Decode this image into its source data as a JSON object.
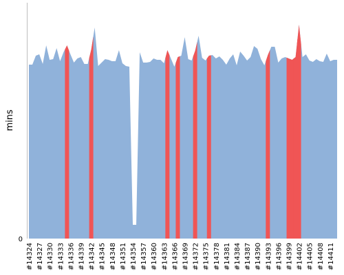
{
  "chart_data": {
    "type": "area",
    "ylabel": "mins",
    "y_ticks": [
      "0"
    ],
    "ylim": [
      0,
      330
    ],
    "colors": {
      "pass": "#90b2da",
      "fail": "#f05555"
    },
    "x_labels": [
      "#14324",
      "#14327",
      "#14330",
      "#14333",
      "#14336",
      "#14339",
      "#14342",
      "#14345",
      "#14348",
      "#14351",
      "#14354",
      "#14357",
      "#14360",
      "#14363",
      "#14366",
      "#14369",
      "#14372",
      "#14375",
      "#14378",
      "#14381",
      "#14384",
      "#14387",
      "#14390",
      "#14393",
      "#14396",
      "#14399",
      "#14402",
      "#14405",
      "#14408",
      "#14411"
    ],
    "builds": [
      {
        "build": 14324,
        "minutes": 253
      },
      {
        "build": 14325,
        "minutes": 253
      },
      {
        "build": 14326,
        "minutes": 266
      },
      {
        "build": 14327,
        "minutes": 268
      },
      {
        "build": 14328,
        "minutes": 254
      },
      {
        "build": 14329,
        "minutes": 281
      },
      {
        "build": 14330,
        "minutes": 260
      },
      {
        "build": 14331,
        "minutes": 261
      },
      {
        "build": 14332,
        "minutes": 277
      },
      {
        "build": 14333,
        "minutes": 258
      },
      {
        "build": 14334,
        "minutes": 271
      },
      {
        "build": 14335,
        "minutes": 281,
        "failed": true
      },
      {
        "build": 14336,
        "minutes": 268
      },
      {
        "build": 14337,
        "minutes": 256
      },
      {
        "build": 14338,
        "minutes": 262
      },
      {
        "build": 14339,
        "minutes": 264
      },
      {
        "build": 14340,
        "minutes": 254
      },
      {
        "build": 14341,
        "minutes": 254
      },
      {
        "build": 14342,
        "minutes": 275,
        "failed": true
      },
      {
        "build": 14343,
        "minutes": 307
      },
      {
        "build": 14344,
        "minutes": 251
      },
      {
        "build": 14345,
        "minutes": 256
      },
      {
        "build": 14346,
        "minutes": 261
      },
      {
        "build": 14347,
        "minutes": 260
      },
      {
        "build": 14348,
        "minutes": 258
      },
      {
        "build": 14349,
        "minutes": 258
      },
      {
        "build": 14350,
        "minutes": 274
      },
      {
        "build": 14351,
        "minutes": 255
      },
      {
        "build": 14352,
        "minutes": 251
      },
      {
        "build": 14353,
        "minutes": 250
      },
      {
        "build": 14354,
        "minutes": 20
      },
      {
        "build": 14355,
        "minutes": 20
      },
      {
        "build": 14356,
        "minutes": 271
      },
      {
        "build": 14357,
        "minutes": 256
      },
      {
        "build": 14358,
        "minutes": 256
      },
      {
        "build": 14359,
        "minutes": 257
      },
      {
        "build": 14360,
        "minutes": 262
      },
      {
        "build": 14361,
        "minutes": 260
      },
      {
        "build": 14362,
        "minutes": 260
      },
      {
        "build": 14363,
        "minutes": 255
      },
      {
        "build": 14364,
        "minutes": 274,
        "failed": true
      },
      {
        "build": 14365,
        "minutes": 262
      },
      {
        "build": 14366,
        "minutes": 250
      },
      {
        "build": 14367,
        "minutes": 264,
        "failed": true
      },
      {
        "build": 14368,
        "minutes": 266
      },
      {
        "build": 14369,
        "minutes": 293
      },
      {
        "build": 14370,
        "minutes": 261
      },
      {
        "build": 14371,
        "minutes": 259
      },
      {
        "build": 14372,
        "minutes": 273,
        "failed": true
      },
      {
        "build": 14373,
        "minutes": 295
      },
      {
        "build": 14374,
        "minutes": 263
      },
      {
        "build": 14375,
        "minutes": 259
      },
      {
        "build": 14376,
        "minutes": 266,
        "failed": true
      },
      {
        "build": 14377,
        "minutes": 267
      },
      {
        "build": 14378,
        "minutes": 262
      },
      {
        "build": 14379,
        "minutes": 265
      },
      {
        "build": 14380,
        "minutes": 260
      },
      {
        "build": 14381,
        "minutes": 253
      },
      {
        "build": 14382,
        "minutes": 262
      },
      {
        "build": 14383,
        "minutes": 268
      },
      {
        "build": 14384,
        "minutes": 252
      },
      {
        "build": 14385,
        "minutes": 272
      },
      {
        "build": 14386,
        "minutes": 266
      },
      {
        "build": 14387,
        "minutes": 259
      },
      {
        "build": 14388,
        "minutes": 264
      },
      {
        "build": 14389,
        "minutes": 280
      },
      {
        "build": 14390,
        "minutes": 276
      },
      {
        "build": 14391,
        "minutes": 261
      },
      {
        "build": 14392,
        "minutes": 252
      },
      {
        "build": 14393,
        "minutes": 267,
        "failed": true
      },
      {
        "build": 14394,
        "minutes": 279
      },
      {
        "build": 14395,
        "minutes": 279
      },
      {
        "build": 14396,
        "minutes": 256
      },
      {
        "build": 14397,
        "minutes": 262
      },
      {
        "build": 14398,
        "minutes": 264
      },
      {
        "build": 14399,
        "minutes": 262,
        "failed": true
      },
      {
        "build": 14400,
        "minutes": 260,
        "failed": true
      },
      {
        "build": 14401,
        "minutes": 264,
        "failed": true
      },
      {
        "build": 14402,
        "minutes": 311,
        "failed": true
      },
      {
        "build": 14403,
        "minutes": 264
      },
      {
        "build": 14404,
        "minutes": 268
      },
      {
        "build": 14405,
        "minutes": 259
      },
      {
        "build": 14406,
        "minutes": 257
      },
      {
        "build": 14407,
        "minutes": 261
      },
      {
        "build": 14408,
        "minutes": 258
      },
      {
        "build": 14409,
        "minutes": 257
      },
      {
        "build": 14410,
        "minutes": 269
      },
      {
        "build": 14411,
        "minutes": 258
      },
      {
        "build": 14412,
        "minutes": 260
      },
      {
        "build": 14413,
        "minutes": 260
      }
    ]
  }
}
